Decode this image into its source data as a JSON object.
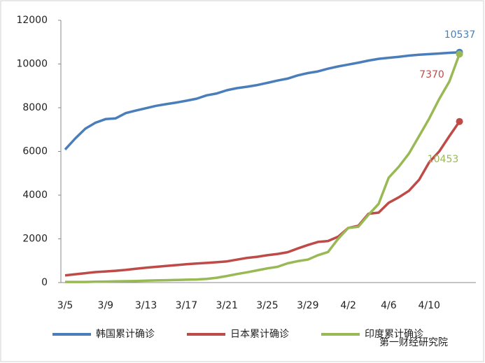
{
  "chart_data": {
    "type": "line",
    "categories": [
      "3/5",
      null,
      null,
      null,
      "3/9",
      null,
      null,
      null,
      "3/13",
      null,
      null,
      null,
      "3/17",
      null,
      null,
      null,
      "3/21",
      null,
      null,
      null,
      "3/25",
      null,
      null,
      null,
      "3/29",
      null,
      null,
      null,
      "4/2",
      null,
      null,
      null,
      "4/6",
      null,
      null,
      null,
      "4/10",
      null,
      null,
      null
    ],
    "series": [
      {
        "name": "韩国累计确诊",
        "color": "#4a7ebb",
        "values": [
          6088,
          6593,
          7041,
          7313,
          7478,
          7513,
          7755,
          7869,
          7979,
          8086,
          8162,
          8236,
          8320,
          8413,
          8565,
          8652,
          8799,
          8897,
          8961,
          9037,
          9137,
          9241,
          9332,
          9478,
          9583,
          9661,
          9786,
          9887,
          9976,
          10062,
          10156,
          10237,
          10284,
          10331,
          10384,
          10423,
          10450,
          10480,
          10512,
          10537
        ]
      },
      {
        "name": "日本累计确诊",
        "color": "#be4b48",
        "values": [
          330,
          380,
          430,
          480,
          510,
          540,
          580,
          630,
          680,
          720,
          760,
          800,
          840,
          870,
          900,
          930,
          970,
          1050,
          1130,
          1180,
          1250,
          1310,
          1390,
          1560,
          1720,
          1860,
          1900,
          2100,
          2500,
          2600,
          3150,
          3200,
          3650,
          3900,
          4200,
          4700,
          5500,
          6000,
          6700,
          7370
        ]
      },
      {
        "name": "印度累计确诊",
        "color": "#98b954",
        "values": [
          30,
          30,
          30,
          40,
          45,
          55,
          65,
          75,
          85,
          100,
          110,
          120,
          130,
          140,
          170,
          220,
          300,
          390,
          470,
          560,
          650,
          720,
          880,
          980,
          1050,
          1250,
          1400,
          2000,
          2500,
          2550,
          3100,
          3600,
          4800,
          5300,
          5900,
          6700,
          7500,
          8400,
          9200,
          10453
        ]
      }
    ],
    "ylim": [
      0,
      12000
    ],
    "yticks": [
      0,
      2000,
      4000,
      6000,
      8000,
      10000,
      12000
    ],
    "watermark": "第一财经研究院"
  }
}
